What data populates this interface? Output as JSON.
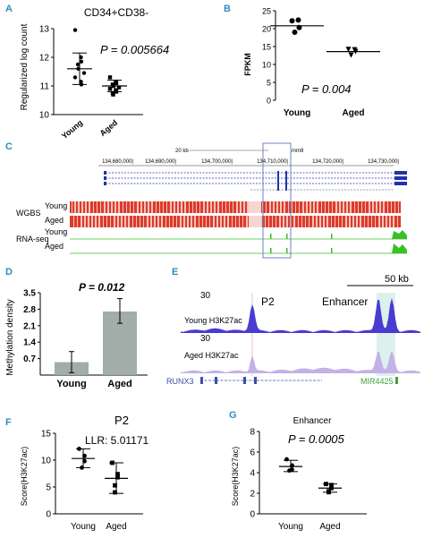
{
  "panels": {
    "A": {
      "label": "A",
      "title": "CD34+CD38-",
      "pvalue": "P = 0.005664",
      "ylabel": "Regularized log count",
      "yticks": [
        "10",
        "11",
        "12",
        "13"
      ],
      "groups": [
        "Young",
        "Aged"
      ]
    },
    "B": {
      "label": "B",
      "ylabel": "FPKM",
      "yticks": [
        "0",
        "5",
        "10",
        "15",
        "20",
        "25"
      ],
      "pvalue": "P = 0.004",
      "groups": [
        "Young",
        "Aged"
      ]
    },
    "C": {
      "label": "C",
      "coords": [
        "134,680,000|",
        "134,690,000|",
        "134,700,000|",
        "134,710,000|",
        "134,720,000|",
        "134,730,000|"
      ],
      "scale": "20 kb",
      "assembly": "mm9",
      "wgbs_label": "WGBS",
      "rnaseq_label": "RNA-seq",
      "track_young": "Young",
      "track_aged": "Aged"
    },
    "D": {
      "label": "D",
      "pvalue": "P = 0.012",
      "ylabel": "Methylation density",
      "yticks": [
        "0.7",
        "1.4",
        "2.1",
        "2.8",
        "3.5"
      ],
      "groups": [
        "Young",
        "Aged"
      ]
    },
    "E": {
      "label": "E",
      "scale": "50 kb",
      "p2": "P2",
      "enhancer": "Enhancer",
      "young_track": "Young H3K27ac",
      "aged_track": "Aged H3K27ac",
      "ymax_young": "30",
      "ymax_aged": "30",
      "gene1": "RUNX3",
      "gene2": "MIR4425"
    },
    "F": {
      "label": "F",
      "title": "P2",
      "llr": "LLR: 5.01171",
      "ylabel": "Score(H3K27ac)",
      "yticks": [
        "0",
        "5",
        "10",
        "15"
      ],
      "groups": [
        "Young",
        "Aged"
      ]
    },
    "G": {
      "label": "G",
      "title": "Enhancer",
      "pvalue": "P = 0.0005",
      "ylabel": "Score(H3K27ac)",
      "yticks": [
        "0",
        "2",
        "4",
        "6",
        "8"
      ],
      "groups": [
        "Young",
        "Aged"
      ]
    }
  },
  "chart_data": [
    {
      "panel": "A",
      "type": "scatter",
      "title": "CD34+CD38-",
      "ylabel": "Regularized log count",
      "ylim": [
        10,
        13
      ],
      "categories": [
        "Young",
        "Aged"
      ],
      "series": [
        {
          "name": "Young",
          "values": [
            12.95,
            12.0,
            11.85,
            11.75,
            11.6,
            11.45,
            11.3,
            11.15,
            11.05
          ],
          "mean": 11.6,
          "sd": [
            11.05,
            12.15
          ]
        },
        {
          "name": "Aged",
          "values": [
            11.3,
            11.15,
            11.1,
            11.05,
            11.0,
            10.95,
            10.9,
            10.85,
            10.8,
            10.75,
            10.7
          ],
          "mean": 11.0,
          "sd": [
            10.8,
            11.2
          ]
        }
      ]
    },
    {
      "panel": "B",
      "type": "scatter",
      "ylabel": "FPKM",
      "ylim": [
        0,
        25
      ],
      "categories": [
        "Young",
        "Aged"
      ],
      "series": [
        {
          "name": "Young",
          "values": [
            22.2,
            22.4,
            20.3,
            19.0
          ],
          "mean": 20.8
        },
        {
          "name": "Aged",
          "values": [
            14.2,
            14.1,
            13.6,
            12.6
          ],
          "mean": 13.6
        }
      ]
    },
    {
      "panel": "D",
      "type": "bar",
      "ylabel": "Methylation density",
      "ylim": [
        0,
        3.5
      ],
      "categories": [
        "Young",
        "Aged"
      ],
      "values": [
        0.55,
        2.7
      ],
      "error": [
        [
          0.1,
          1.0
        ],
        [
          2.2,
          3.25
        ]
      ]
    },
    {
      "panel": "F",
      "type": "scatter",
      "title": "P2",
      "ylabel": "Score(H3K27ac)",
      "ylim": [
        0,
        15
      ],
      "categories": [
        "Young",
        "Aged"
      ],
      "series": [
        {
          "name": "Young",
          "values": [
            12.1,
            10.8,
            9.8,
            8.6
          ],
          "mean": 10.3,
          "sd": [
            8.6,
            12.1
          ]
        },
        {
          "name": "Aged",
          "values": [
            9.5,
            7.4,
            6.8,
            5.3,
            4.0
          ],
          "mean": 6.6,
          "sd": [
            3.8,
            9.5
          ]
        }
      ]
    },
    {
      "panel": "G",
      "type": "scatter",
      "title": "Enhancer",
      "ylabel": "Score(H3K27ac)",
      "ylim": [
        0,
        8
      ],
      "categories": [
        "Young",
        "Aged"
      ],
      "series": [
        {
          "name": "Young",
          "values": [
            5.3,
            4.7,
            4.3,
            4.2
          ],
          "mean": 4.6,
          "sd": [
            4.1,
            5.2
          ]
        },
        {
          "name": "Aged",
          "values": [
            2.9,
            2.8,
            2.5,
            2.2,
            2.1
          ],
          "mean": 2.5,
          "sd": [
            2.1,
            2.9
          ]
        }
      ]
    }
  ]
}
